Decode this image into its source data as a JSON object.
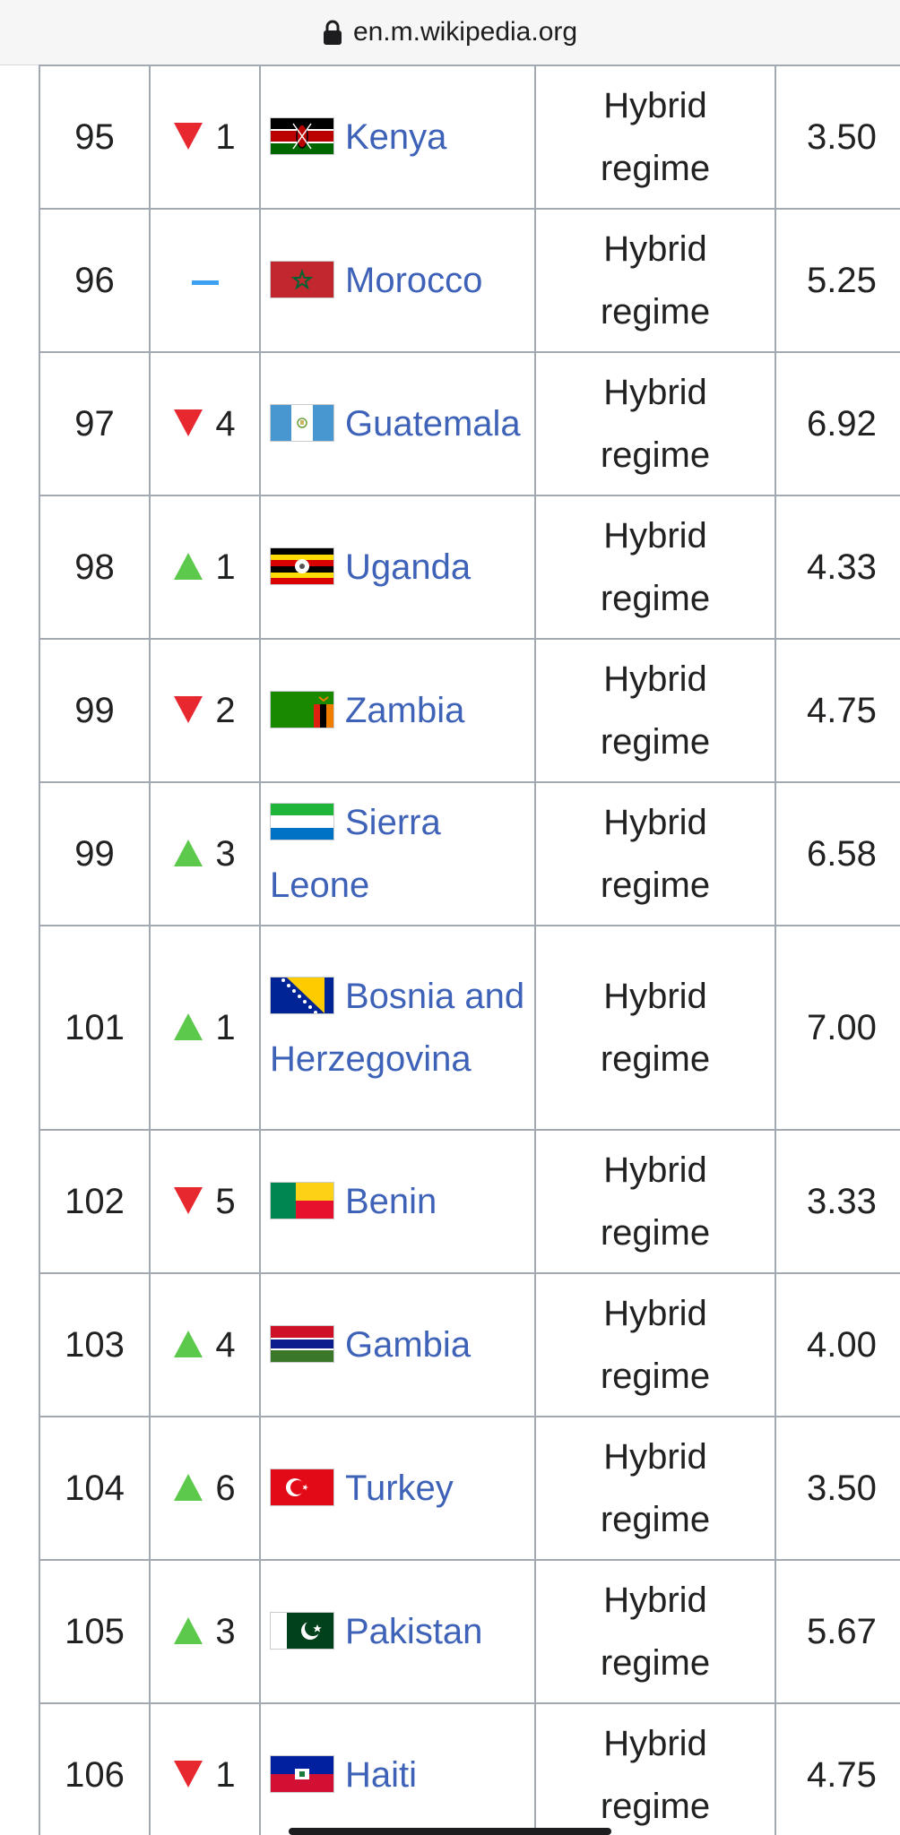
{
  "browser": {
    "url": "en.m.wikipedia.org"
  },
  "table": {
    "rows": [
      {
        "rank": "95",
        "dir": "down",
        "change": "1",
        "flag": "kenya-flag-icon",
        "country": "Kenya",
        "regime1": "Hybrid",
        "regime2": "regime",
        "score": "3.50"
      },
      {
        "rank": "96",
        "dir": "none",
        "change": "",
        "flag": "morocco-flag-icon",
        "country": "Morocco",
        "regime1": "Hybrid",
        "regime2": "regime",
        "score": "5.25"
      },
      {
        "rank": "97",
        "dir": "down",
        "change": "4",
        "flag": "guatemala-flag-icon",
        "country": "Guatemala",
        "regime1": "Hybrid",
        "regime2": "regime",
        "score": "6.92"
      },
      {
        "rank": "98",
        "dir": "up",
        "change": "1",
        "flag": "uganda-flag-icon",
        "country": "Uganda",
        "regime1": "Hybrid",
        "regime2": "regime",
        "score": "4.33"
      },
      {
        "rank": "99",
        "dir": "down",
        "change": "2",
        "flag": "zambia-flag-icon",
        "country": "Zambia",
        "regime1": "Hybrid",
        "regime2": "regime",
        "score": "4.75"
      },
      {
        "rank": "99",
        "dir": "up",
        "change": "3",
        "flag": "sierra-leone-flag-icon",
        "country": "Sierra Leone",
        "regime1": "Hybrid",
        "regime2": "regime",
        "score": "6.58"
      },
      {
        "rank": "101",
        "dir": "up",
        "change": "1",
        "flag": "bosnia-flag-icon",
        "country": "Bosnia and Herzegovina",
        "regime1": "Hybrid",
        "regime2": "regime",
        "score": "7.00"
      },
      {
        "rank": "102",
        "dir": "down",
        "change": "5",
        "flag": "benin-flag-icon",
        "country": "Benin",
        "regime1": "Hybrid",
        "regime2": "regime",
        "score": "3.33"
      },
      {
        "rank": "103",
        "dir": "up",
        "change": "4",
        "flag": "gambia-flag-icon",
        "country": "Gambia",
        "regime1": "Hybrid",
        "regime2": "regime",
        "score": "4.00"
      },
      {
        "rank": "104",
        "dir": "up",
        "change": "6",
        "flag": "turkey-flag-icon",
        "country": "Turkey",
        "regime1": "Hybrid",
        "regime2": "regime",
        "score": "3.50"
      },
      {
        "rank": "105",
        "dir": "up",
        "change": "3",
        "flag": "pakistan-flag-icon",
        "country": "Pakistan",
        "regime1": "Hybrid",
        "regime2": "regime",
        "score": "5.67"
      },
      {
        "rank": "106",
        "dir": "down",
        "change": "1",
        "flag": "haiti-flag-icon",
        "country": "Haiti",
        "regime1": "Hybrid",
        "regime2": "regime",
        "score": "4.75"
      }
    ]
  },
  "colors": {
    "link": "#3e62b8",
    "down": "#e8282f",
    "up": "#5dc94c",
    "same": "#3ea0f0",
    "border": "#a2a9b1"
  }
}
